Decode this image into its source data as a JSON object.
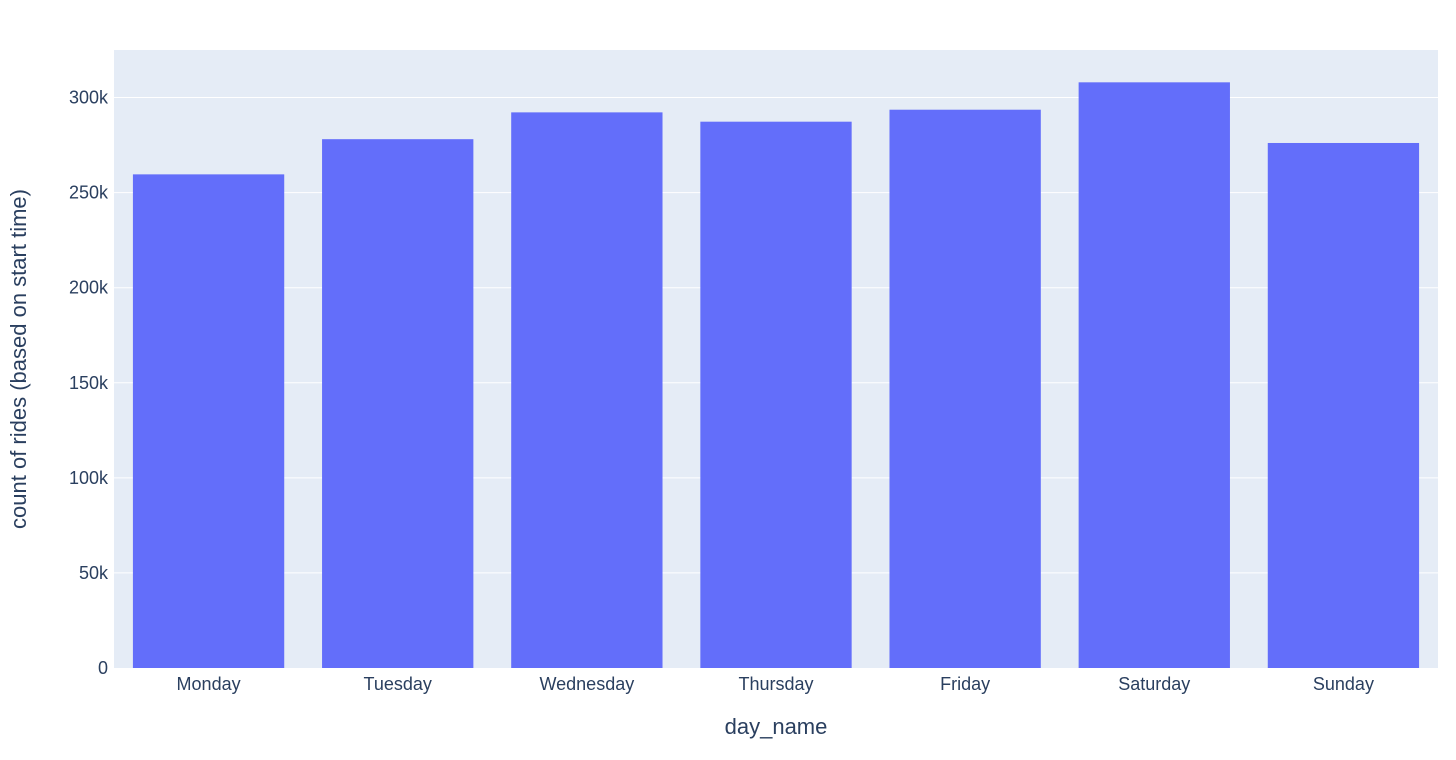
{
  "colors": {
    "plot_background": "#e5ecf6",
    "gridline": "#ffffff",
    "bar": "#636efa",
    "text": "#2a3f5f"
  },
  "chart_data": {
    "type": "bar",
    "title": "",
    "xlabel": "day_name",
    "ylabel": "count of rides (based on start time)",
    "categories": [
      "Monday",
      "Tuesday",
      "Wednesday",
      "Thursday",
      "Friday",
      "Saturday",
      "Sunday"
    ],
    "series": [
      {
        "values": [
          259600,
          278100,
          292200,
          287300,
          293600,
          308000,
          276100
        ]
      }
    ],
    "ylim": [
      0,
      325000
    ],
    "y_ticks": [
      0,
      50000,
      100000,
      150000,
      200000,
      250000,
      300000
    ],
    "y_tick_labels": [
      "0",
      "50k",
      "100k",
      "150k",
      "200k",
      "250k",
      "300k"
    ],
    "grid": true,
    "legend": "none"
  }
}
